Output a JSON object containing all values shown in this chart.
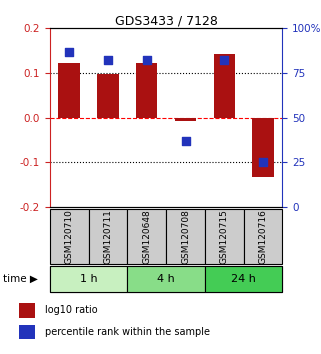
{
  "title": "GDS3433 / 7128",
  "samples": [
    "GSM120710",
    "GSM120711",
    "GSM120648",
    "GSM120708",
    "GSM120715",
    "GSM120716"
  ],
  "log10_ratio": [
    0.122,
    0.098,
    0.122,
    -0.008,
    0.143,
    -0.133
  ],
  "percentile_rank": [
    87,
    82,
    82,
    37,
    82,
    25
  ],
  "bar_color": "#aa1111",
  "dot_color": "#2233bb",
  "ylim_left": [
    -0.2,
    0.2
  ],
  "ylim_right": [
    0,
    100
  ],
  "yticks_left": [
    -0.2,
    -0.1,
    0.0,
    0.1,
    0.2
  ],
  "yticks_right": [
    0,
    25,
    50,
    75,
    100
  ],
  "left_tick_color": "#cc2222",
  "right_tick_color": "#2233bb",
  "bar_width": 0.55,
  "dot_size": 40,
  "sample_box_color": "#cccccc",
  "sample_label_fontsize": 6.5,
  "time_groups": [
    {
      "label": "1 h",
      "start": 0,
      "end": 2,
      "color": "#c8f0c0"
    },
    {
      "label": "4 h",
      "start": 2,
      "end": 4,
      "color": "#88dd88"
    },
    {
      "label": "24 h",
      "start": 4,
      "end": 6,
      "color": "#44cc55"
    }
  ],
  "legend_items": [
    {
      "label": "log10 ratio",
      "color": "#aa1111"
    },
    {
      "label": "percentile rank within the sample",
      "color": "#2233bb"
    }
  ],
  "time_label": "time"
}
